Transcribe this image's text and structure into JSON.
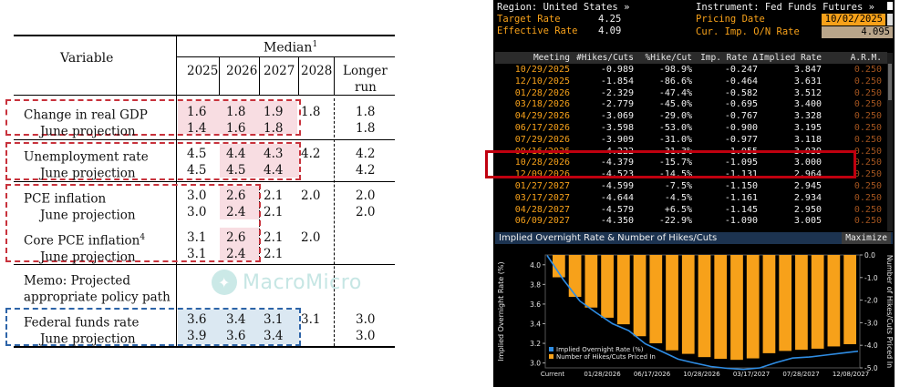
{
  "sep_table": {
    "header": {
      "variable": "Variable",
      "median": "Median",
      "median_sup": "1",
      "years": [
        "2025",
        "2026",
        "2027",
        "2028"
      ],
      "longer_run_1": "Longer",
      "longer_run_2": "run"
    },
    "rows": [
      {
        "label": "Change in real GDP",
        "sup": "",
        "values": [
          "1.6",
          "1.8",
          "1.9",
          "1.8",
          "1.8"
        ],
        "indent": false
      },
      {
        "label": "June projection",
        "sup": "",
        "values": [
          "1.4",
          "1.6",
          "1.8",
          "",
          "1.8"
        ],
        "indent": true
      },
      {
        "label": "Unemployment rate",
        "sup": "",
        "values": [
          "4.5",
          "4.4",
          "4.3",
          "4.2",
          "4.2"
        ],
        "indent": false
      },
      {
        "label": "June projection",
        "sup": "",
        "values": [
          "4.5",
          "4.5",
          "4.4",
          "",
          "4.2"
        ],
        "indent": true
      },
      {
        "label": "PCE inflation",
        "sup": "",
        "values": [
          "3.0",
          "2.6",
          "2.1",
          "2.0",
          "2.0"
        ],
        "indent": false
      },
      {
        "label": "June projection",
        "sup": "",
        "values": [
          "3.0",
          "2.4",
          "2.1",
          "",
          "2.0"
        ],
        "indent": true
      },
      {
        "label": "Core PCE inflation",
        "sup": "4",
        "values": [
          "3.1",
          "2.6",
          "2.1",
          "2.0",
          ""
        ],
        "indent": false
      },
      {
        "label": "June projection",
        "sup": "",
        "values": [
          "3.1",
          "2.4",
          "2.1",
          "",
          ""
        ],
        "indent": true
      },
      {
        "label": "Memo: Projected",
        "sup": "",
        "values": [
          "",
          "",
          "",
          "",
          ""
        ],
        "indent": false
      },
      {
        "label": "appropriate policy path",
        "sup": "",
        "values": [
          "",
          "",
          "",
          "",
          ""
        ],
        "indent": false
      },
      {
        "label": "Federal funds rate",
        "sup": "",
        "values": [
          "3.6",
          "3.4",
          "3.1",
          "3.1",
          "3.0"
        ],
        "indent": false
      },
      {
        "label": "June projection",
        "sup": "",
        "values": [
          "3.9",
          "3.6",
          "3.4",
          "",
          "3.0"
        ],
        "indent": true
      }
    ],
    "watermark": "MacroMicro",
    "colors": {
      "highlight_pink": "#f8dde2",
      "highlight_blue": "#dbe8f2",
      "box_red": "#c8323c",
      "box_blue": "#2d64a8"
    }
  },
  "terminal": {
    "region_label": "Region: United States »",
    "instrument_label": "Instrument: Fed Funds Futures »",
    "target_rate_label": "Target Rate",
    "target_rate_value": "4.25",
    "effective_rate_label": "Effective Rate",
    "effective_rate_value": "4.09",
    "pricing_date_label": "Pricing Date",
    "pricing_date_value": "10/02/2025",
    "cur_imp_label": "Cur. Imp. O/N Rate",
    "cur_imp_value": "4.095",
    "columns": [
      "Meeting",
      "#Hikes/Cuts",
      "%Hike/Cut",
      "Imp. Rate Δ",
      "Implied Rate",
      "A.R.M."
    ],
    "rows": [
      [
        "10/29/2025",
        "-0.989",
        "-98.9%",
        "-0.247",
        "3.847",
        "0.250"
      ],
      [
        "12/10/2025",
        "-1.854",
        "-86.6%",
        "-0.464",
        "3.631",
        "0.250"
      ],
      [
        "01/28/2026",
        "-2.329",
        "-47.4%",
        "-0.582",
        "3.512",
        "0.250"
      ],
      [
        "03/18/2026",
        "-2.779",
        "-45.0%",
        "-0.695",
        "3.400",
        "0.250"
      ],
      [
        "04/29/2026",
        "-3.069",
        "-29.0%",
        "-0.767",
        "3.328",
        "0.250"
      ],
      [
        "06/17/2026",
        "-3.598",
        "-53.0%",
        "-0.900",
        "3.195",
        "0.250"
      ],
      [
        "07/29/2026",
        "-3.909",
        "-31.0%",
        "-0.977",
        "3.118",
        "0.250"
      ],
      [
        "09/16/2026",
        "-4.222",
        "-31.3%",
        "-1.055",
        "3.039",
        "0.250"
      ],
      [
        "10/28/2026",
        "-4.379",
        "-15.7%",
        "-1.095",
        "3.000",
        "0.250"
      ],
      [
        "12/09/2026",
        "-4.523",
        "-14.5%",
        "-1.131",
        "2.964",
        "0.250"
      ],
      [
        "01/27/2027",
        "-4.599",
        "-7.5%",
        "-1.150",
        "2.945",
        "0.250"
      ],
      [
        "03/17/2027",
        "-4.644",
        "-4.5%",
        "-1.161",
        "2.934",
        "0.250"
      ],
      [
        "04/28/2027",
        "-4.579",
        "+6.5%",
        "-1.145",
        "2.950",
        "0.250"
      ],
      [
        "06/09/2027",
        "-4.350",
        "-22.9%",
        "-1.090",
        "3.005",
        "0.250"
      ]
    ],
    "chart_title": "Implied Overnight Rate & Number of Hikes/Cuts",
    "maximize_label": "Maximize",
    "colors": {
      "orange": "#f7a11a",
      "blue": "#2f8de4",
      "red_box": "#c0000f"
    }
  },
  "chart_data": {
    "type": "bar",
    "title": "Implied Overnight Rate & Number of Hikes/Cuts",
    "ylabel": "Implied Overnight Rate (%)",
    "y2label": "Number of Hikes/Cuts Priced In",
    "x_tick_labels": [
      "Current",
      "01/28/2026",
      "06/17/2026",
      "10/28/2026",
      "03/17/2027",
      "07/28/2027",
      "12/08/2027"
    ],
    "y_ticks": [
      "4.0",
      "3.8",
      "3.6",
      "3.4",
      "3.2",
      "3.0"
    ],
    "y2_ticks": [
      "0.0",
      "-1.0",
      "-2.0",
      "-3.0",
      "-4.0",
      "-5.0"
    ],
    "ylim": [
      2.95,
      4.1
    ],
    "y2lim": [
      -5.0,
      0.0
    ],
    "series": [
      {
        "name": "Implied Overnight Rate (%)",
        "type": "line",
        "values": [
          4.095,
          3.847,
          3.631,
          3.512,
          3.4,
          3.328,
          3.195,
          3.118,
          3.039,
          3.0,
          2.964,
          2.945,
          2.934,
          2.95,
          3.005,
          3.05,
          3.06,
          3.08,
          3.1,
          3.12
        ]
      },
      {
        "name": "Number of Hikes/Cuts Priced In",
        "type": "bar",
        "values": [
          -0.989,
          -1.854,
          -2.329,
          -2.779,
          -3.069,
          -3.598,
          -3.909,
          -4.222,
          -4.379,
          -4.523,
          -4.599,
          -4.644,
          -4.579,
          -4.35,
          -4.25,
          -4.2,
          -4.15,
          -4.05,
          -3.95
        ]
      }
    ],
    "legend": "bottom-left"
  }
}
